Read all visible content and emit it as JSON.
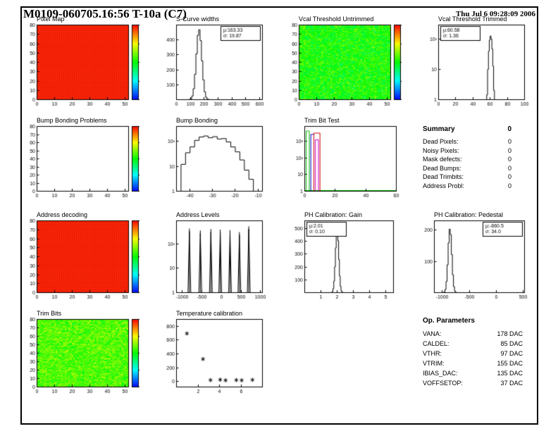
{
  "header": {
    "title": "M0109-060705.16:56 T-10a (C7)",
    "timestamp": "Thu Jul 6 09:28:09 2006"
  },
  "summary": {
    "title": "Summary",
    "total": "0",
    "rows": [
      {
        "label": "Dead Pixels:",
        "value": "0"
      },
      {
        "label": "Noisy Pixels:",
        "value": "0"
      },
      {
        "label": "Mask defects:",
        "value": "0"
      },
      {
        "label": "Dead Bumps:",
        "value": "0"
      },
      {
        "label": "Dead Trimbits:",
        "value": "0"
      },
      {
        "label": "Address Probl:",
        "value": "0"
      }
    ]
  },
  "op_parameters": {
    "title": "Op. Parameters",
    "rows": [
      {
        "label": "VANA:",
        "value": "178 DAC"
      },
      {
        "label": "CALDEL:",
        "value": "85 DAC"
      },
      {
        "label": "VTHR:",
        "value": "97 DAC"
      },
      {
        "label": "VTRIM:",
        "value": "155 DAC"
      },
      {
        "label": "IBIAS_DAC:",
        "value": "135 DAC"
      },
      {
        "label": "VOFFSETOP:",
        "value": "37 DAC"
      }
    ]
  },
  "chart_data": [
    {
      "id": "pixel_map",
      "type": "heatmap",
      "title": "Pixel Map",
      "fill": "uniform",
      "value": 0.97,
      "palette": "rainbow",
      "x_range": [
        0,
        52
      ],
      "y_range": [
        0,
        80
      ],
      "x_ticks": [
        0,
        10,
        20,
        30,
        40,
        50
      ],
      "y_ticks": [
        0,
        10,
        20,
        30,
        40,
        50,
        60,
        70,
        80
      ],
      "colorbar": true
    },
    {
      "id": "scurve_widths",
      "type": "hist",
      "title": "S-Curve widths",
      "shape": "gauss",
      "mu": 163.33,
      "sigma": 19.87,
      "peak": 470,
      "nbins": 62,
      "x_range": [
        0,
        620
      ],
      "x_ticks": [
        0,
        100,
        200,
        300,
        400,
        500,
        600
      ],
      "y_range": [
        0,
        500
      ],
      "y_ticks": [
        100,
        200,
        300,
        400
      ],
      "log": false,
      "stats": {
        "mu": "μ:163.33",
        "sigma": "σ: 19.87"
      },
      "stats_pos": "tr"
    },
    {
      "id": "vcal_untrimmed",
      "type": "heatmap",
      "title": "Vcal Threshold Untrimmed",
      "fill": "noise",
      "noise_mean": 0.52,
      "noise_spread": 0.14,
      "seed": 7,
      "palette": "rainbow",
      "x_range": [
        0,
        52
      ],
      "y_range": [
        0,
        80
      ],
      "x_ticks": [
        0,
        10,
        20,
        30,
        40,
        50
      ],
      "y_ticks": [
        0,
        10,
        20,
        30,
        40,
        50,
        60,
        70,
        80
      ],
      "colorbar": true
    },
    {
      "id": "vcal_trimmed",
      "type": "hist",
      "title": "Vcal Threshold Trimmed",
      "shape": "gauss",
      "mu": 60.58,
      "sigma": 1.36,
      "peak": 130,
      "nbins": 100,
      "x_range": [
        0,
        100
      ],
      "x_ticks": [
        0,
        20,
        40,
        60,
        80,
        100
      ],
      "log": true,
      "y_max": 300,
      "stats": {
        "mu": "μ:60.58",
        "sigma": "σ: 1.36"
      },
      "stats_pos": "tl"
    },
    {
      "id": "bump_problems",
      "type": "heatmap",
      "title": "Bump Bonding Problems",
      "fill": "empty",
      "palette": "rainbow",
      "x_range": [
        0,
        52
      ],
      "y_range": [
        0,
        80
      ],
      "x_ticks": [
        0,
        10,
        20,
        30,
        40,
        50
      ],
      "y_ticks": [
        0,
        10,
        20,
        30,
        40,
        50,
        60,
        70,
        80
      ],
      "colorbar": true
    },
    {
      "id": "bump_bonding",
      "type": "hist",
      "title": "Bump Bonding",
      "shape": "steps",
      "log": true,
      "y_max": 400,
      "x_range": [
        -46,
        -8
      ],
      "x_ticks": [
        -40,
        -30,
        -20,
        -10
      ],
      "bins": [
        [
          -44,
          12
        ],
        [
          -42,
          35
        ],
        [
          -40,
          60
        ],
        [
          -38,
          110
        ],
        [
          -36,
          150
        ],
        [
          -34,
          165
        ],
        [
          -32,
          140
        ],
        [
          -30,
          155
        ],
        [
          -28,
          125
        ],
        [
          -26,
          130
        ],
        [
          -24,
          95
        ],
        [
          -22,
          60
        ],
        [
          -20,
          38
        ],
        [
          -18,
          18
        ],
        [
          -16,
          7
        ],
        [
          -14,
          3
        ],
        [
          -12,
          1
        ]
      ]
    },
    {
      "id": "trim_bit_test",
      "type": "multi_hist",
      "title": "Trim Bit Test",
      "log": true,
      "y_max": 8000,
      "x_range": [
        0,
        60
      ],
      "x_ticks": [
        0,
        20,
        40,
        60
      ],
      "series": [
        {
          "color": "#00bb00",
          "bins": [
            [
              1,
              3,
              4000
            ]
          ],
          "baseline_to": 60
        },
        {
          "color": "#0000cc",
          "bins": [
            [
              4,
              6,
              2500
            ]
          ]
        },
        {
          "color": "#cc0000",
          "bins": [
            [
              6,
              10,
              3000
            ]
          ]
        },
        {
          "color": "#cc00cc",
          "bins": [
            [
              7,
              9,
              1200
            ]
          ]
        }
      ]
    },
    {
      "id": "address_decoding",
      "type": "heatmap",
      "title": "Address decoding",
      "fill": "uniform",
      "value": 0.97,
      "palette": "rainbow",
      "x_range": [
        0,
        52
      ],
      "y_range": [
        0,
        80
      ],
      "x_ticks": [
        0,
        10,
        20,
        30,
        40,
        50
      ],
      "y_ticks": [
        0,
        10,
        20,
        30,
        40,
        50,
        60,
        70,
        80
      ],
      "colorbar": true
    },
    {
      "id": "address_levels",
      "type": "spikes",
      "title": "Address Levels",
      "log": true,
      "y_max": 900,
      "x_range": [
        -1150,
        1050
      ],
      "x_ticks": [
        -1000,
        -500,
        0,
        500,
        1000
      ],
      "spikes": [
        [
          -820,
          420
        ],
        [
          -540,
          350
        ],
        [
          -270,
          400
        ],
        [
          -30,
          380
        ],
        [
          220,
          360
        ],
        [
          460,
          300
        ],
        [
          700,
          520
        ]
      ]
    },
    {
      "id": "ph_gain",
      "type": "hist",
      "title": "PH Calibration: Gain",
      "shape": "gauss",
      "mu": 2.01,
      "sigma": 0.1,
      "peak": 500,
      "nbins": 110,
      "x_range": [
        0,
        5.5
      ],
      "x_ticks": [
        1,
        2,
        3,
        4,
        5
      ],
      "y_range": [
        0,
        560
      ],
      "y_ticks": [
        100,
        200,
        300,
        400,
        500
      ],
      "log": false,
      "stats": {
        "mu": "μ:2.01",
        "sigma": "σ: 0.10"
      },
      "stats_pos": "tl"
    },
    {
      "id": "ph_pedestal",
      "type": "hist",
      "title": "PH Calibration: Pedestal",
      "shape": "gauss",
      "mu": -860.5,
      "sigma": 34.0,
      "peak": 205,
      "nbins": 85,
      "x_range": [
        -1150,
        520
      ],
      "x_ticks": [
        -1000,
        -500,
        0,
        500
      ],
      "y_range": [
        0,
        230
      ],
      "y_ticks": [
        100,
        200
      ],
      "log": false,
      "stats": {
        "mu": "μ:-860.5",
        "sigma": "σ: 34.0"
      },
      "stats_pos": "tr"
    },
    {
      "id": "trim_bits",
      "type": "heatmap",
      "title": "Trim Bits",
      "fill": "noise",
      "noise_mean": 0.58,
      "noise_spread": 0.13,
      "seed": 21,
      "palette": "rainbow",
      "x_range": [
        0,
        52
      ],
      "y_range": [
        0,
        80
      ],
      "x_ticks": [
        0,
        10,
        20,
        30,
        40,
        50
      ],
      "y_ticks": [
        0,
        10,
        20,
        30,
        40,
        50,
        60,
        70,
        80
      ],
      "colorbar": true
    },
    {
      "id": "temperature_calibration",
      "type": "scatter",
      "title": "Temperature calibration",
      "marker": "asterisk",
      "x_range": [
        0,
        8
      ],
      "x_ticks": [
        2,
        4,
        6
      ],
      "y_range": [
        -80,
        900
      ],
      "y_ticks": [
        0,
        200,
        400,
        600,
        800
      ],
      "points": [
        [
          1.0,
          690
        ],
        [
          2.5,
          320
        ],
        [
          3.2,
          15
        ],
        [
          4.1,
          20
        ],
        [
          4.6,
          12
        ],
        [
          5.6,
          15
        ],
        [
          6.1,
          12
        ],
        [
          7.1,
          18
        ]
      ]
    }
  ]
}
